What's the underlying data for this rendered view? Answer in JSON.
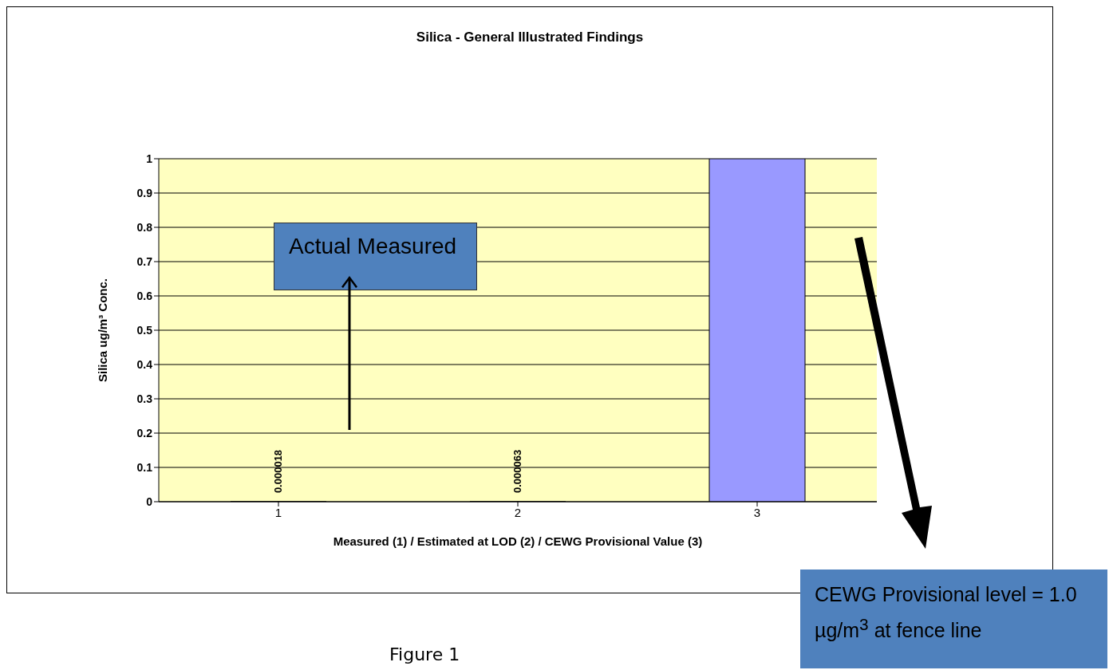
{
  "chart_data": {
    "type": "bar",
    "title": "Silica - General Illustrated Findings",
    "xlabel": "Measured (1)  / Estimated at LOD (2)  / CEWG Provisional Value (3)",
    "ylabel": "Silica ug/m³ Conc.",
    "categories": [
      "1",
      "2",
      "3"
    ],
    "values": [
      1.8e-05,
      6.3e-05,
      1
    ],
    "color": "#9999ff",
    "value_labels": [
      "0.000018",
      "0.000063",
      null
    ],
    "ylim": [
      0,
      1
    ],
    "yticks": [
      0,
      0.1,
      0.2,
      0.3,
      0.4,
      0.5,
      0.6,
      0.7,
      0.8,
      0.9,
      1
    ],
    "grid": "y",
    "annotations": [
      "Actual Measured",
      "CEWG Provisional level = 1.0 µg/m$^{3}$ at fence line",
      "Figure 1"
    ]
  }
}
